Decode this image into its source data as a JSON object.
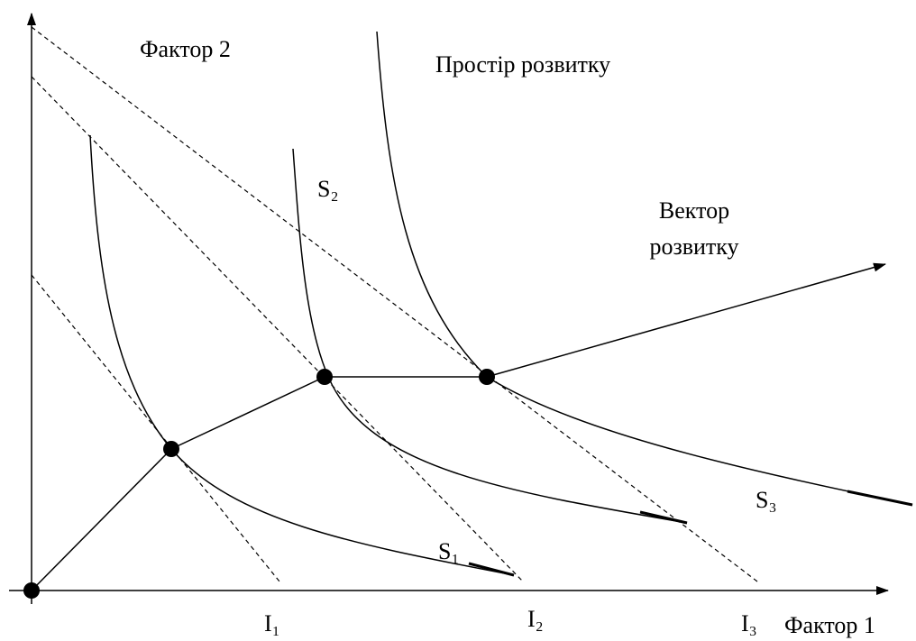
{
  "labels": {
    "y_axis": "Фактор 2",
    "x_axis": "Фактор 1",
    "space": "Простір розвитку",
    "vector": [
      "Вектор",
      "розвитку"
    ],
    "s1": "S₁",
    "s2": "S₂",
    "s3": "S₃",
    "i1": "I₁",
    "i2": "I₂",
    "i3": "I₃"
  }
}
